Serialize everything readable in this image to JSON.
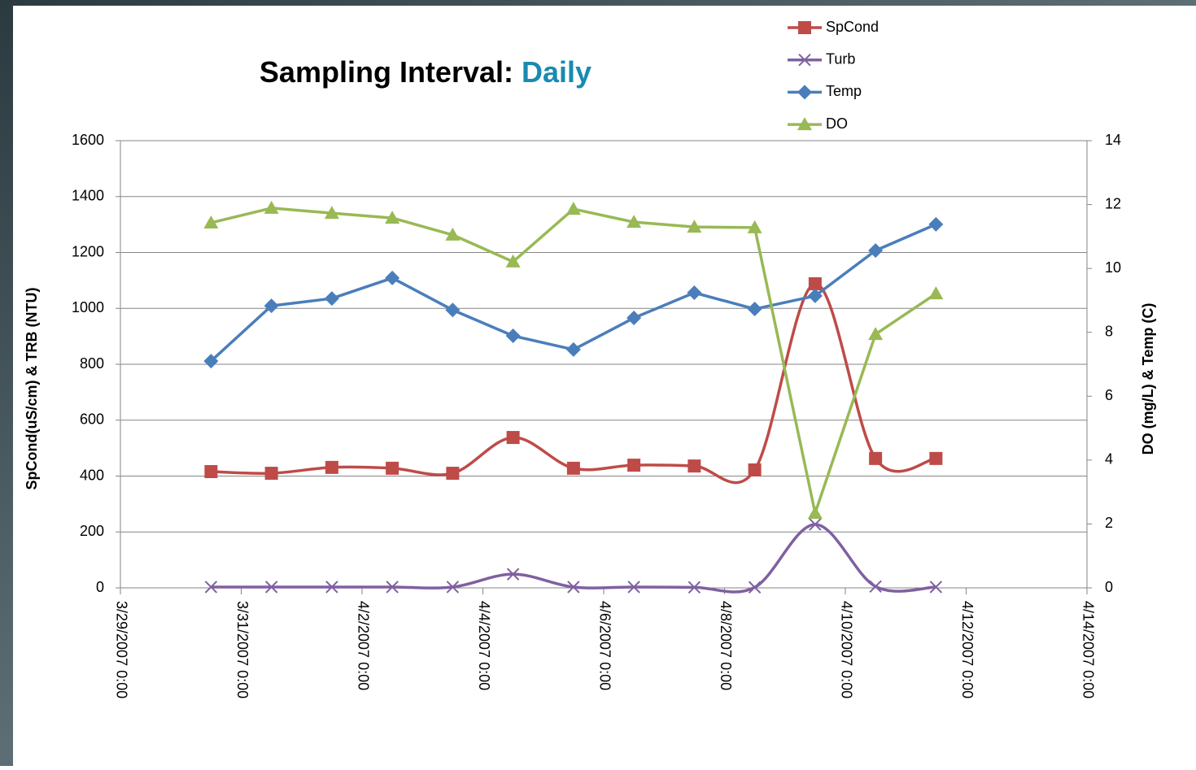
{
  "chart_data": {
    "type": "line",
    "title": "Sampling Interval:",
    "title_highlight": "Daily",
    "y_label": "SpCond(uS/cm) & TRB (NTU)",
    "y2_label": "DO (mg/L) & Temp (C)",
    "x": [
      "2007-03-30T12:00",
      "2007-03-31T12:00",
      "2007-04-01T12:00",
      "2007-04-02T12:00",
      "2007-04-03T12:00",
      "2007-04-04T12:00",
      "2007-04-05T12:00",
      "2007-04-06T12:00",
      "2007-04-07T12:00",
      "2007-04-08T12:00",
      "2007-04-09T12:00",
      "2007-04-10T12:00",
      "2007-04-11T12:00"
    ],
    "xlim": [
      "2007-03-29T00:00",
      "2007-04-14T00:00"
    ],
    "xticks": [
      {
        "value": "2007-03-29T00:00",
        "label": "3/29/2007 0:00"
      },
      {
        "value": "2007-03-31T00:00",
        "label": "3/31/2007 0:00"
      },
      {
        "value": "2007-04-02T00:00",
        "label": "4/2/2007 0:00"
      },
      {
        "value": "2007-04-04T00:00",
        "label": "4/4/2007 0:00"
      },
      {
        "value": "2007-04-06T00:00",
        "label": "4/6/2007 0:00"
      },
      {
        "value": "2007-04-08T00:00",
        "label": "4/8/2007 0:00"
      },
      {
        "value": "2007-04-10T00:00",
        "label": "4/10/2007 0:00"
      },
      {
        "value": "2007-04-12T00:00",
        "label": "4/12/2007 0:00"
      },
      {
        "value": "2007-04-14T00:00",
        "label": "4/14/2007 0:00"
      }
    ],
    "ylim": [
      0,
      1600
    ],
    "yticks": [
      0,
      200,
      400,
      600,
      800,
      1000,
      1200,
      1400,
      1600
    ],
    "y2lim": [
      0,
      14
    ],
    "y2ticks": [
      0,
      2,
      4,
      6,
      8,
      10,
      12,
      14
    ],
    "grid": true,
    "series": [
      {
        "name": "SpCond",
        "color": "#be4b48",
        "marker": "square",
        "smooth": true,
        "values": [
          416,
          410,
          431,
          428,
          410,
          538,
          428,
          439,
          436,
          422,
          1088,
          463,
          463
        ]
      },
      {
        "name": "Turb",
        "color": "#7f60a0",
        "marker": "x",
        "smooth": true,
        "values": [
          3,
          3,
          3,
          3,
          3,
          49,
          3,
          3,
          2,
          2,
          227,
          5,
          3
        ]
      },
      {
        "name": "Temp",
        "color": "#4a7ebb",
        "marker": "diamond",
        "smooth": false,
        "axis": "y2",
        "values": [
          7.1,
          8.83,
          9.06,
          9.7,
          8.7,
          7.89,
          7.46,
          8.45,
          9.24,
          8.73,
          9.14,
          10.56,
          11.38
        ]
      },
      {
        "name": "DO",
        "color": "#98b954",
        "marker": "triangle",
        "smooth": false,
        "axis": "y2",
        "values": [
          11.43,
          11.89,
          11.73,
          11.58,
          11.05,
          10.21,
          11.86,
          11.45,
          11.3,
          11.28,
          2.34,
          7.94,
          9.21
        ]
      }
    ]
  }
}
